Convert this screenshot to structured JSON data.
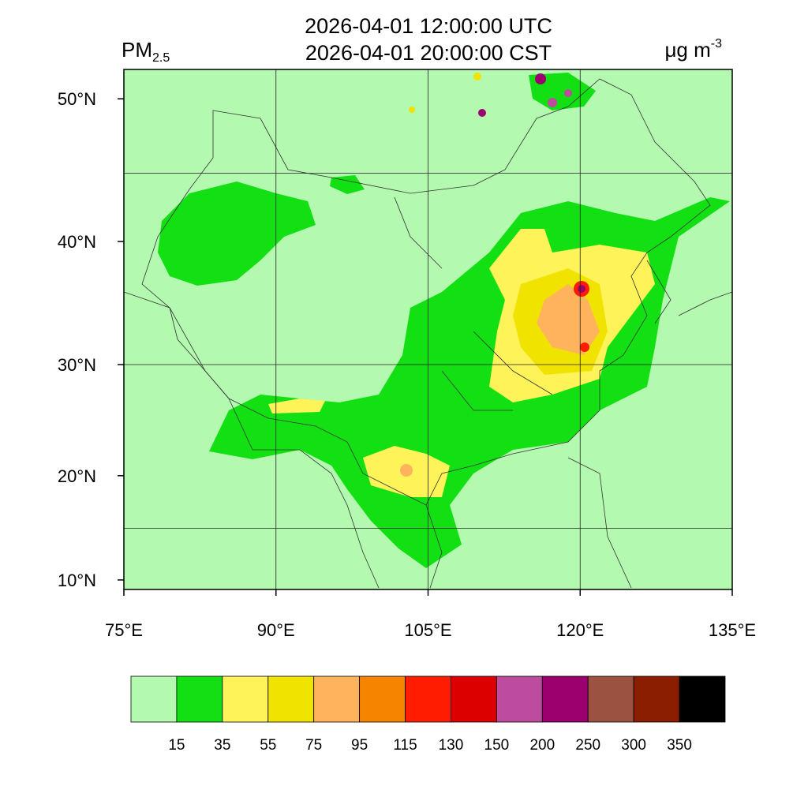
{
  "title": [
    "2026-04-01 12:00:00 UTC",
    "2026-04-01 20:00:00 CST"
  ],
  "variable": {
    "name": "PM",
    "subscript": "2.5"
  },
  "units": {
    "base": "μg m",
    "exponent": "-3"
  },
  "lon_ticks": [
    {
      "value": 75,
      "label": "75°E"
    },
    {
      "value": 90,
      "label": "90°E"
    },
    {
      "value": 105,
      "label": "105°E"
    },
    {
      "value": 120,
      "label": "120°E"
    },
    {
      "value": 135,
      "label": "135°E"
    }
  ],
  "lat_ticks": [
    {
      "value": 10,
      "label": "10°N"
    },
    {
      "value": 20,
      "label": "20°N"
    },
    {
      "value": 30,
      "label": "30°N"
    },
    {
      "value": 40,
      "label": "40°N"
    },
    {
      "value": 50,
      "label": "50°N"
    }
  ],
  "gridlines": {
    "lon": [
      90,
      105,
      120
    ],
    "lat": [
      15,
      30,
      45
    ]
  },
  "colorbar": {
    "levels": [
      15,
      35,
      55,
      75,
      95,
      115,
      130,
      150,
      200,
      250,
      300,
      350
    ],
    "colors": [
      "#b3f9b0",
      "#13e013",
      "#fff35a",
      "#f1e300",
      "#ffb35d",
      "#f58400",
      "#ff1c00",
      "#dc0000",
      "#bd4b9e",
      "#9b006e",
      "#9b5240",
      "#8b1d00",
      "#000000"
    ]
  }
}
